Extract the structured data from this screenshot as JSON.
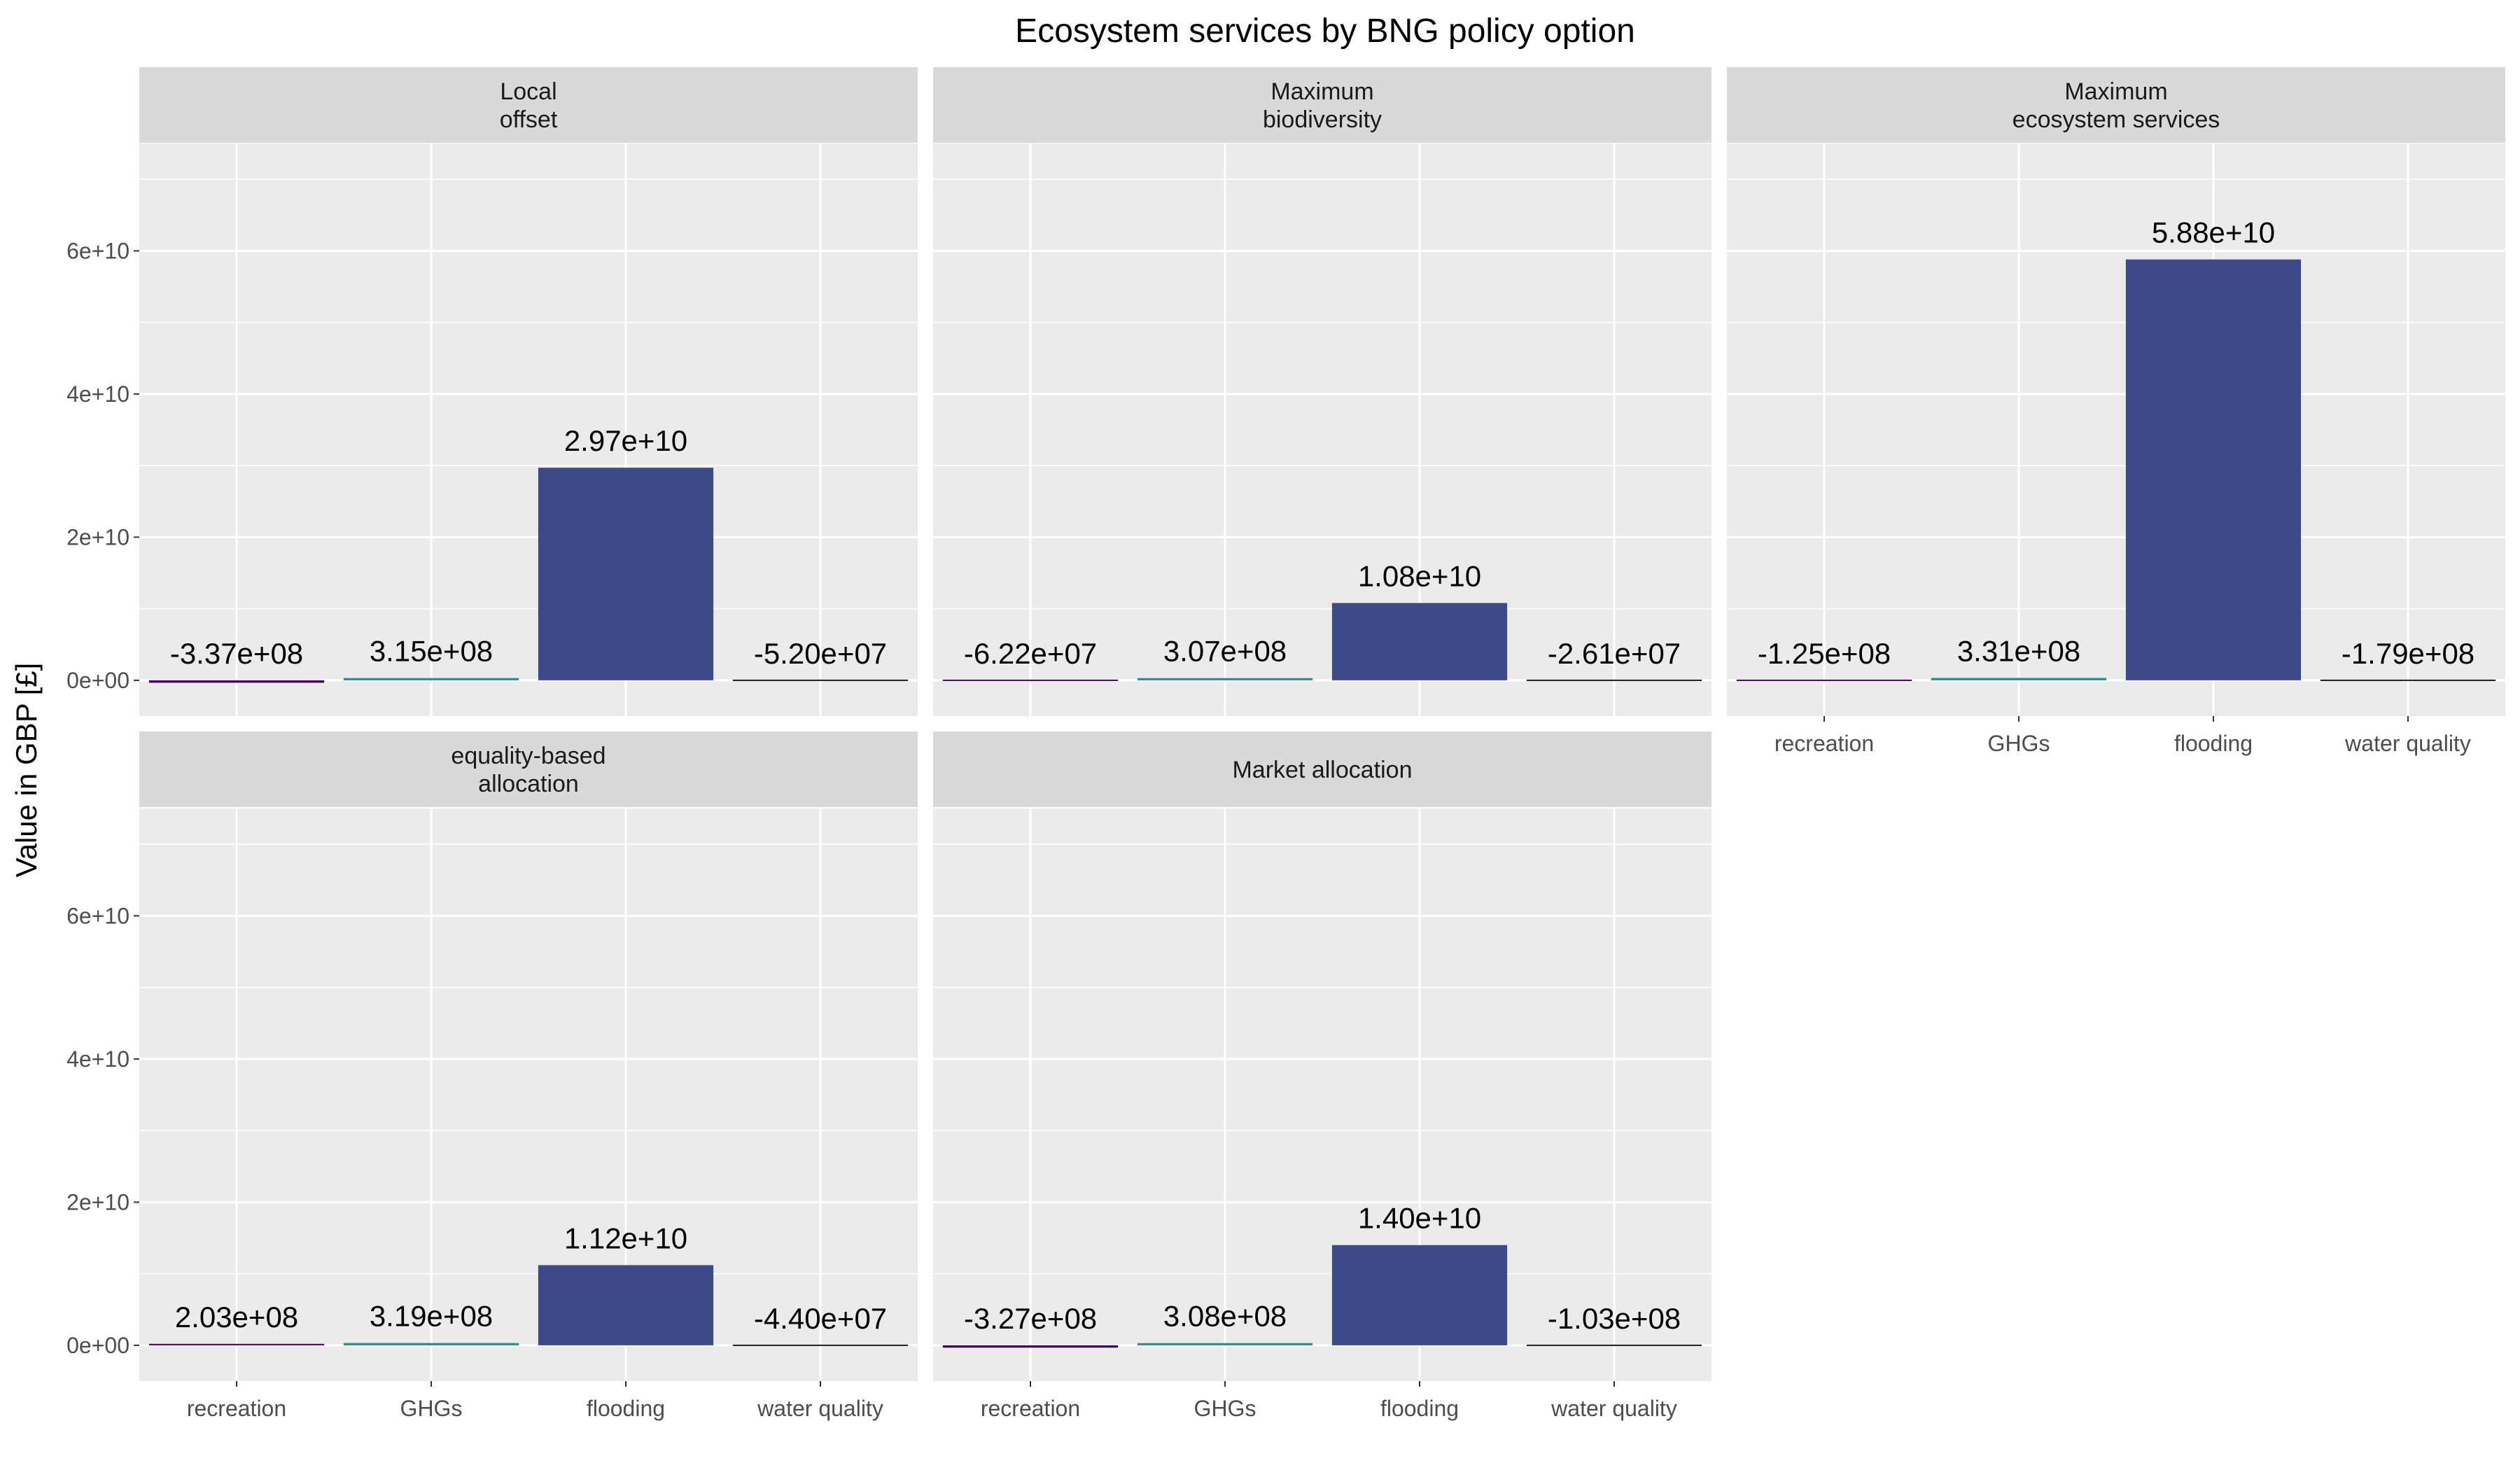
{
  "chart_data": {
    "type": "bar",
    "title": "Ecosystem services by BNG policy option",
    "xlabel": "",
    "ylabel": "Value in GBP [£]",
    "categories": [
      "recreation",
      "GHGs",
      "flooding",
      "water quality"
    ],
    "ylim": [
      -5000000000,
      75000000000
    ],
    "y_ticks": [
      0,
      20000000000,
      40000000000,
      60000000000
    ],
    "y_tick_labels": [
      "0e+00",
      "2e+10",
      "4e+10",
      "6e+10"
    ],
    "grid": true,
    "layout": "facet wrap, 2 rows × 3 columns",
    "colors": {
      "panel_bg": "#ebebeb",
      "strip_bg": "#d9d9d9",
      "grid": "#ffffff",
      "recreation": "#440154",
      "GHGs": "#21908c",
      "flooding": "#3e4989",
      "water_quality": "#1a1a1a"
    },
    "panels": [
      {
        "strip": [
          "Local",
          "offset"
        ],
        "values": [
          -337000000,
          315000000,
          29700000000,
          -52000000
        ],
        "labels": [
          "-3.37e+08",
          "3.15e+08",
          "2.97e+10",
          "-5.20e+07"
        ]
      },
      {
        "strip": [
          "Maximum",
          "biodiversity"
        ],
        "values": [
          -62200000,
          307000000,
          10800000000,
          -26100000
        ],
        "labels": [
          "-6.22e+07",
          "3.07e+08",
          "1.08e+10",
          "-2.61e+07"
        ]
      },
      {
        "strip": [
          "Maximum",
          "ecosystem services"
        ],
        "values": [
          -125000000,
          331000000,
          58800000000,
          -179000000
        ],
        "labels": [
          "-1.25e+08",
          "3.31e+08",
          "5.88e+10",
          "-1.79e+08"
        ]
      },
      {
        "strip": [
          "equality-based",
          "allocation"
        ],
        "values": [
          203000000,
          319000000,
          11200000000,
          -44000000
        ],
        "labels": [
          "2.03e+08",
          "3.19e+08",
          "1.12e+10",
          "-4.40e+07"
        ]
      },
      {
        "strip": [
          "Market allocation"
        ],
        "values": [
          -327000000,
          308000000,
          14000000000,
          -103000000
        ],
        "labels": [
          "-3.27e+08",
          "3.08e+08",
          "1.40e+10",
          "-1.03e+08"
        ]
      }
    ]
  }
}
